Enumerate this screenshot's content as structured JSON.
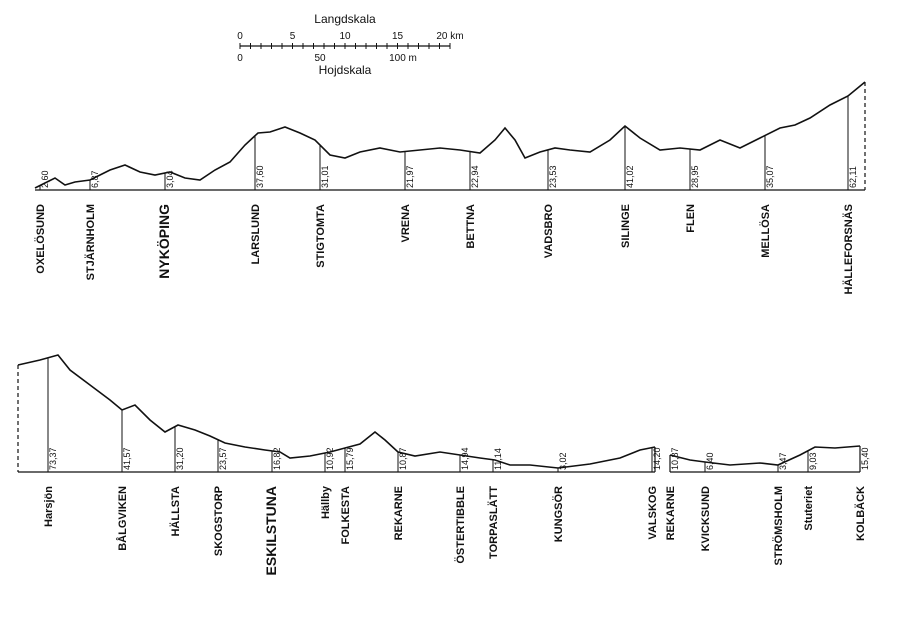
{
  "scale": {
    "length_title": "Langdskala",
    "length_ticks": [
      "0",
      "5",
      "10",
      "15",
      "20 km"
    ],
    "height_title": "Hojdskala",
    "height_ticks": [
      "0",
      "50",
      "100 m"
    ]
  },
  "profiles": [
    {
      "stations": [
        {
          "name": "OXELÖSUND",
          "height": "2,60"
        },
        {
          "name": "STJÄRNHOLM",
          "height": "6,87"
        },
        {
          "name": "NYKÖPING",
          "height": "3,04"
        },
        {
          "name": "LARSLUND",
          "height": "37,60"
        },
        {
          "name": "STIGTOMTA",
          "height": "31,01"
        },
        {
          "name": "VRENA",
          "height": "21,97"
        },
        {
          "name": "BETTNA",
          "height": "22,94"
        },
        {
          "name": "VADSBRO",
          "height": "23,53"
        },
        {
          "name": "SILINGE",
          "height": "41,02"
        },
        {
          "name": "FLEN",
          "height": "28,95"
        },
        {
          "name": "MELLÖSA",
          "height": "35,07"
        },
        {
          "name": "HÄLLEFORSNÄS",
          "height": "62,11"
        }
      ]
    },
    {
      "stations": [
        {
          "name": "Harsjön",
          "height": "73,37"
        },
        {
          "name": "BÅLGVIKEN",
          "height": "41,57"
        },
        {
          "name": "HÄLLSTA",
          "height": "31,20"
        },
        {
          "name": "SKOGSTORP",
          "height": "23,57"
        },
        {
          "name": "ESKILSTUNA",
          "height": "16,82"
        },
        {
          "name": "Hällby",
          "height": "10,92"
        },
        {
          "name": "FOLKESTA",
          "height": "15,79"
        },
        {
          "name": "REKARNE",
          "height": "10,87"
        },
        {
          "name": "ÖSTERTIBBLE",
          "height": "14,94"
        },
        {
          "name": "TORPASLÄTT",
          "height": "11,14"
        },
        {
          "name": "KUNGSÖR",
          "height": "3,02"
        },
        {
          "name": "VALSKOG",
          "height": "14,20"
        },
        {
          "name": "REKARNE",
          "height": "10,87"
        },
        {
          "name": "KVICKSUND",
          "height": "6,40"
        },
        {
          "name": "STRÖMSHOLM",
          "height": "3,47"
        },
        {
          "name": "Stuteriet",
          "height": "9,03"
        },
        {
          "name": "KOLBÄCK",
          "height": "15,40"
        }
      ]
    }
  ]
}
